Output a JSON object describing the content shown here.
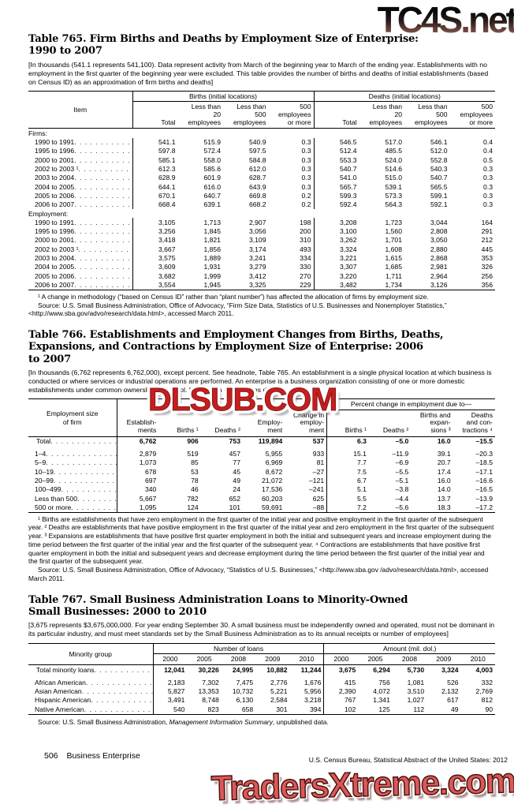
{
  "watermarks": {
    "top": "TC4S.net",
    "middle": "DLSUB.COM",
    "bottom": "TradersXtreme.com",
    "top_colors": [
      "#0a0a0a",
      "#96675b"
    ],
    "middle_color": "#c41f1f",
    "bottom_color": "#db5858"
  },
  "page_footer": {
    "page_number": "506",
    "section": "Business Enterprise",
    "credit": "U.S. Census Bureau, Statistical Abstract of the United States: 2012"
  },
  "table765": {
    "title": "Table 765. Firm Births and Deaths by Employment Size of Enterprise:\n1990 to 2007",
    "headnote": "[In thousands (541.1 represents 541,100). Data represent activity from March of the beginning year to March of the ending year. Establishments with no employment in the first quarter of the beginning year were excluded. This table provides the number of births and deaths of initial establishments (based on Census ID) as an approximation of firm births and deaths]",
    "col_item": "Item",
    "group_births": "Births (initial locations)",
    "group_deaths": "Deaths (initial locations)",
    "subcols": [
      "Total",
      "Less than\n20\nemployees",
      "Less than\n500\nemployees",
      "500\nemployees\nor more"
    ],
    "rows": [
      {
        "type": "section",
        "label": "Firms:"
      },
      {
        "type": "data",
        "label": "1990 to 1991",
        "values": [
          "541.1",
          "515.9",
          "540.9",
          "0.3",
          "546.5",
          "517.0",
          "546.1",
          "0.4"
        ]
      },
      {
        "type": "data",
        "label": "1995 to 1996",
        "values": [
          "597.8",
          "572.4",
          "597.5",
          "0.3",
          "512.4",
          "485.5",
          "512.0",
          "0.4"
        ]
      },
      {
        "type": "data",
        "label": "2000 to 2001",
        "values": [
          "585.1",
          "558.0",
          "584.8",
          "0.3",
          "553.3",
          "524.0",
          "552.8",
          "0.5"
        ]
      },
      {
        "type": "data",
        "label": "2002 to 2003 ¹",
        "values": [
          "612.3",
          "585.6",
          "612.0",
          "0.3",
          "540.7",
          "514.6",
          "540.3",
          "0.3"
        ]
      },
      {
        "type": "data",
        "label": "2003 to 2004",
        "values": [
          "628.9",
          "601.9",
          "628.7",
          "0.3",
          "541.0",
          "515.0",
          "540.7",
          "0.3"
        ]
      },
      {
        "type": "data",
        "label": "2004 to 2005",
        "values": [
          "644.1",
          "616.0",
          "643.9",
          "0.3",
          "565.7",
          "539.1",
          "565.5",
          "0.3"
        ]
      },
      {
        "type": "data",
        "label": "2005 to 2006",
        "values": [
          "670.1",
          "640.7",
          "669.8",
          "0.2",
          "599.3",
          "573.3",
          "599.1",
          "0.3"
        ]
      },
      {
        "type": "data",
        "label": "2006 to 2007",
        "values": [
          "668.4",
          "639.1",
          "668.2",
          "0.2",
          "592.4",
          "564.3",
          "592.1",
          "0.3"
        ]
      },
      {
        "type": "section",
        "label": "Employment:"
      },
      {
        "type": "data",
        "label": "1990 to 1991",
        "values": [
          "3,105",
          "1,713",
          "2,907",
          "198",
          "3,208",
          "1,723",
          "3,044",
          "164"
        ]
      },
      {
        "type": "data",
        "label": "1995 to 1996",
        "values": [
          "3,256",
          "1,845",
          "3,056",
          "200",
          "3,100",
          "1,560",
          "2,808",
          "291"
        ]
      },
      {
        "type": "data",
        "label": "2000 to 2001",
        "values": [
          "3,418",
          "1,821",
          "3,109",
          "310",
          "3,262",
          "1,701",
          "3,050",
          "212"
        ]
      },
      {
        "type": "data",
        "label": "2002 to 2003 ¹",
        "values": [
          "3,667",
          "1,856",
          "3,174",
          "493",
          "3,324",
          "1,608",
          "2,880",
          "445"
        ]
      },
      {
        "type": "data",
        "label": "2003 to 2004",
        "values": [
          "3,575",
          "1,889",
          "3,241",
          "334",
          "3,221",
          "1,615",
          "2,868",
          "353"
        ]
      },
      {
        "type": "data",
        "label": "2004 to 2005",
        "values": [
          "3,609",
          "1,931",
          "3,279",
          "330",
          "3,307",
          "1,685",
          "2,981",
          "326"
        ]
      },
      {
        "type": "data",
        "label": "2005 to 2006",
        "values": [
          "3,682",
          "1,999",
          "3,412",
          "270",
          "3,220",
          "1,711",
          "2,964",
          "256"
        ]
      },
      {
        "type": "data",
        "label": "2006 to 2007",
        "values": [
          "3,554",
          "1,945",
          "3,325",
          "229",
          "3,482",
          "1,734",
          "3,126",
          "356"
        ]
      }
    ],
    "footnote": "¹ A change in methodology (“based on Census ID” rather than “plant number”) has affected the allocation of firms by employment size.",
    "source": "Source: U.S. Small Business Administration, Office of Advocacy, “Firm Size Data, Statistics of U.S. Businesses and Nonemployer Statistics,” <http://www.sba.gov/advo/research/data.html>, accessed March 2011."
  },
  "table766": {
    "title": "Table 766. Establishments and Employment Changes from Births, Deaths,\nExpansions, and Contractions by Employment Size of Enterprise: 2006\nto 2007",
    "headnote": "[In thousands (6,762 represents 6,762,000), except percent. See headnote, Table 765. An establishment is a single physical location at which business is conducted or where services or industrial operations are performed. An enterprise is a business organization consisting of one or more domestic establishments under common ownership or control. Minus sign (–) indicates decrease]",
    "col_item": "Employment size\nof firm",
    "group_pct": "Percent change in employment due to—",
    "cols": [
      "Establish-\nments",
      "Births ¹",
      "Deaths ²",
      "Employ-\nment",
      "Change in\nemploy-\nment",
      "Births ¹",
      "Deaths ²",
      "Births and\nexpan-\nsions ³",
      "Deaths\nand con-\ntractions ⁴"
    ],
    "rows": [
      {
        "type": "data",
        "bold": true,
        "label": "Total",
        "values": [
          "6,762",
          "906",
          "753",
          "119,894",
          "537",
          "6.3",
          "–5.0",
          "16.0",
          "–15.5"
        ]
      },
      {
        "type": "data",
        "label": "1–4",
        "values": [
          "2,879",
          "519",
          "457",
          "5,955",
          "933",
          "15.1",
          "–11.9",
          "39.1",
          "–20.3"
        ]
      },
      {
        "type": "data",
        "label": "5–9",
        "values": [
          "1,073",
          "85",
          "77",
          "6,969",
          "81",
          "7.7",
          "–6.9",
          "20.7",
          "–18.5"
        ]
      },
      {
        "type": "data",
        "label": "10–19",
        "values": [
          "678",
          "53",
          "45",
          "8,672",
          "–27",
          "7.5",
          "–5.5",
          "17.4",
          "–17.1"
        ]
      },
      {
        "type": "data",
        "label": "20–99",
        "values": [
          "697",
          "78",
          "49",
          "21,072",
          "–121",
          "6.7",
          "–5.1",
          "16.0",
          "–16.6"
        ]
      },
      {
        "type": "data",
        "label": "100–499",
        "values": [
          "340",
          "46",
          "24",
          "17,536",
          "–241",
          "5.1",
          "–3.8",
          "14.0",
          "–16.5"
        ]
      },
      {
        "type": "data",
        "label": "Less than 500",
        "values": [
          "5,667",
          "782",
          "652",
          "60,203",
          "625",
          "5.5",
          "–4.4",
          "13.7",
          "–13.9"
        ]
      },
      {
        "type": "data",
        "label": "500 or more",
        "values": [
          "1,095",
          "124",
          "101",
          "59,691",
          "–88",
          "7.2",
          "–5.6",
          "18.3",
          "–17.2"
        ]
      }
    ],
    "footnote": "¹ Births are establishments that have zero employment in the first quarter of the initial year and positive employment in the first quarter of the subsequent year. ² Deaths are establishments that have positive employment in the first quarter of the initial year and zero employment in the first quarter of the subsequent year. ³ Expansions are establishments that have positive first quarter employment in both the initial and subsequent years and increase employment during the time period between the first quarter of the initial year and the first quarter of the subsequent year. ⁴ Contractions are establishments that have positive first quarter employment in both the initial and subsequent years and decrease employment during the time period between the first quarter of the initial year and the first quarter of the subsequent year.",
    "source": "Source: U.S. Small Business Administration, Office of Advocacy, “Statistics of U.S. Businesses,” <http://www.sba.gov /advo/research/data.html>, accessed March 2011."
  },
  "table767": {
    "title": "Table 767. Small Business Administration Loans to Minority-Owned\nSmall Businesses: 2000 to 2010",
    "headnote": "[3,675 represents $3,675,000,000. For year ending September 30. A small business must be independently owned and operated, must not be dominant in its particular industry, and must meet standards set by the Small Business Administration as to its annual receipts or number of employees]",
    "col_group": "Minority group",
    "group_number": "Number of loans",
    "group_amount": "Amount (mil. dol.)",
    "years": [
      "2000",
      "2005",
      "2008",
      "2009",
      "2010"
    ],
    "rows": [
      {
        "type": "data",
        "bold": true,
        "label": "Total minority loans",
        "values": [
          "12,041",
          "30,226",
          "24,995",
          "10,882",
          "11,244",
          "3,675",
          "6,294",
          "5,730",
          "3,324",
          "4,003"
        ]
      },
      {
        "type": "data",
        "label": "African American",
        "values": [
          "2,183",
          "7,302",
          "7,475",
          "2,776",
          "1,676",
          "415",
          "756",
          "1,081",
          "526",
          "332"
        ]
      },
      {
        "type": "data",
        "label": "Asian American",
        "values": [
          "5,827",
          "13,353",
          "10,732",
          "5,221",
          "5,956",
          "2,390",
          "4,072",
          "3,510",
          "2,132",
          "2,769"
        ]
      },
      {
        "type": "data",
        "label": "Hispanic American",
        "values": [
          "3,491",
          "8,748",
          "6,130",
          "2,584",
          "3,218",
          "767",
          "1,341",
          "1,027",
          "617",
          "812"
        ]
      },
      {
        "type": "data",
        "label": "Native American",
        "values": [
          "540",
          "823",
          "658",
          "301",
          "394",
          "102",
          "125",
          "112",
          "49",
          "90"
        ]
      }
    ],
    "source_prefix": "Source: U.S. Small Business Administration, ",
    "source_italic": "Management Information Summary",
    "source_suffix": ", unpublished data."
  }
}
